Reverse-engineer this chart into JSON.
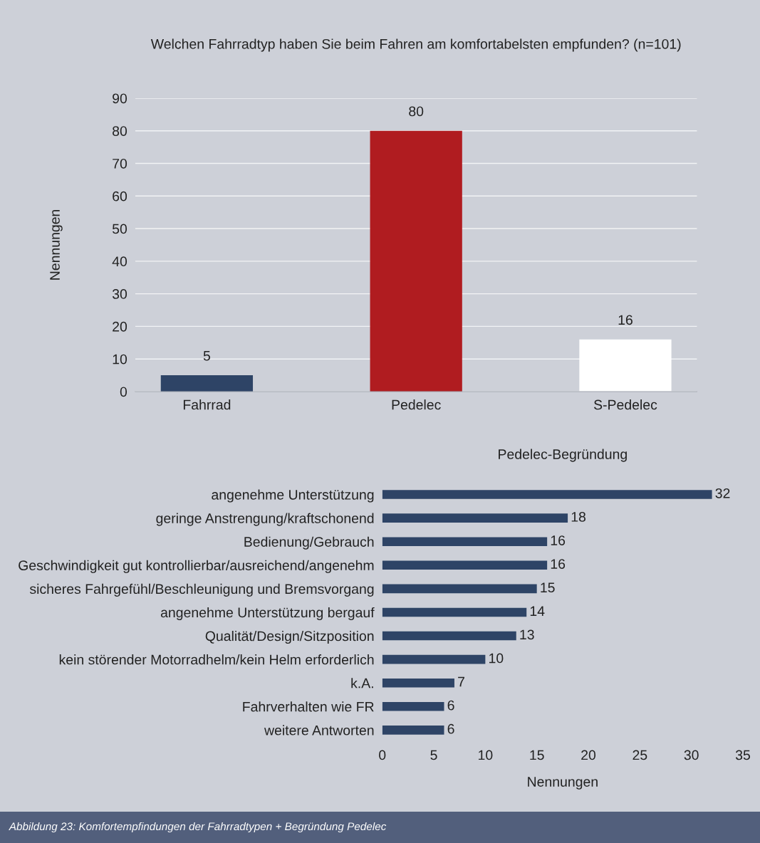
{
  "chart_data": [
    {
      "type": "bar",
      "title": "Welchen Fahrradtyp haben Sie beim Fahren am komfortabelsten empfunden? (n=101)",
      "ylabel": "Nennungen",
      "categories": [
        "Fahrrad",
        "Pedelec",
        "S-Pedelec"
      ],
      "values": [
        5,
        80,
        16
      ],
      "colors": [
        "#2e4466",
        "#b01c20",
        "#ffffff"
      ],
      "ylim": [
        0,
        90
      ],
      "yticks": [
        0,
        10,
        20,
        30,
        40,
        50,
        60,
        70,
        80,
        90
      ],
      "grid": "y",
      "data_labels": true
    },
    {
      "type": "bar",
      "orientation": "horizontal",
      "title": "Pedelec-Begründung",
      "xlabel": "Nennungen",
      "categories": [
        "angenehme Unterstützung",
        "geringe Anstrengung/kraftschonend",
        "Bedienung/Gebrauch",
        "Geschwindigkeit gut kontrollierbar/ausreichend/angenehm",
        "sicheres Fahrgefühl/Beschleunigung und Bremsvorgang",
        "angenehme Unterstützung bergauf",
        "Qualität/Design/Sitzposition",
        "kein störender Motorradhelm/kein Helm erforderlich",
        "k.A.",
        "Fahrverhalten wie FR",
        "weitere Antworten"
      ],
      "values": [
        32,
        18,
        16,
        16,
        15,
        14,
        13,
        10,
        7,
        6,
        6
      ],
      "color": "#2e4466",
      "xlim": [
        0,
        35
      ],
      "xticks": [
        0,
        5,
        10,
        15,
        20,
        25,
        30,
        35
      ],
      "data_labels": true,
      "annotations": [
        "Abbildung 23: Komfortempfindungen der Fahrradtypen + Begründung Pedelec"
      ]
    }
  ]
}
